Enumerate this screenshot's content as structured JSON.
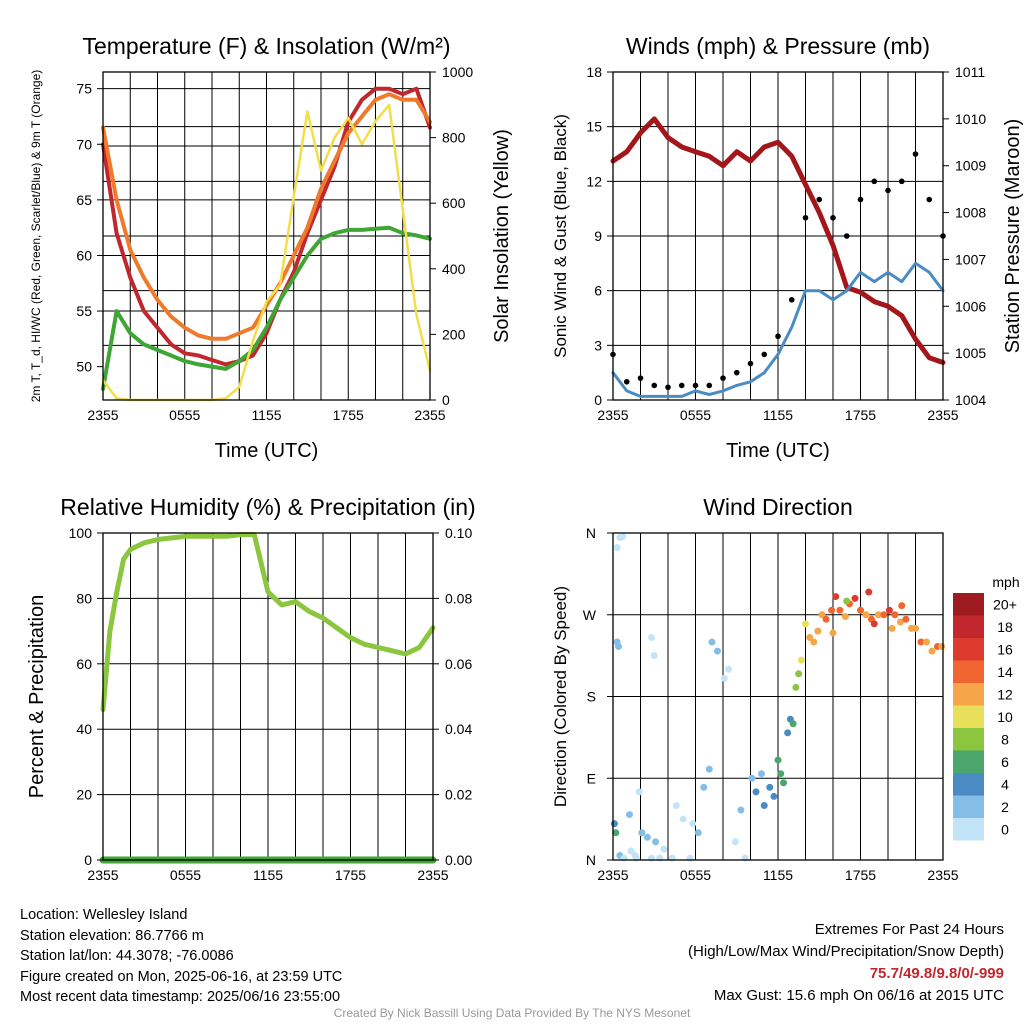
{
  "chart_data": [
    {
      "type": "line",
      "title": "Temperature (F) & Insolation (W/m²)",
      "xlabel": "Time (UTC)",
      "ylabel": "2m T, T_d, HI/WC (Red, Green, Scarlet/Blue) & 9m T (Orange)",
      "y2label": "Solar Insolation (Yellow)",
      "x_ticks": [
        "2355",
        "0555",
        "1155",
        "1755",
        "2355"
      ],
      "ylim": [
        47,
        76.5
      ],
      "y_ticks": [
        50,
        55,
        60,
        65,
        70,
        75
      ],
      "y2lim": [
        0,
        1000
      ],
      "y2_ticks": [
        0,
        200,
        400,
        600,
        800,
        1000
      ],
      "x_hours": [
        0,
        1,
        2,
        3,
        4,
        5,
        6,
        7,
        8,
        9,
        10,
        11,
        12,
        13,
        14,
        15,
        16,
        17,
        18,
        19,
        20,
        21,
        22,
        23,
        24
      ],
      "series": [
        {
          "key": "temp_2m",
          "color": "#c1272d",
          "axis": "left",
          "values": [
            70,
            62,
            58,
            55,
            53.5,
            52,
            51.2,
            51,
            50.6,
            50.2,
            50.5,
            51,
            53,
            56,
            58.5,
            62,
            65,
            68,
            72,
            74,
            75,
            75,
            74.5,
            75,
            71.5
          ]
        },
        {
          "key": "temp_9m",
          "color": "#f07a2c",
          "axis": "left",
          "values": [
            71.5,
            65,
            60.5,
            58,
            56,
            54.5,
            53.5,
            52.8,
            52.5,
            52.5,
            53,
            53.5,
            55.5,
            57.5,
            60,
            62.5,
            66,
            68.5,
            71,
            72.5,
            74,
            74.5,
            74,
            74,
            72
          ]
        },
        {
          "key": "dewpoint",
          "color": "#3fa535",
          "axis": "left",
          "values": [
            48,
            55,
            53,
            52,
            51.5,
            51,
            50.5,
            50.2,
            50,
            49.8,
            50.5,
            51.5,
            53.5,
            56,
            58,
            60,
            61.5,
            62,
            62.3,
            62.3,
            62.4,
            62.5,
            62,
            61.8,
            61.5
          ]
        },
        {
          "key": "insolation",
          "color": "#f2de4a",
          "axis": "right",
          "values": [
            60,
            5,
            0,
            0,
            0,
            0,
            0,
            0,
            0,
            5,
            40,
            180,
            300,
            350,
            620,
            880,
            700,
            800,
            860,
            780,
            850,
            900,
            580,
            260,
            90
          ]
        }
      ]
    },
    {
      "type": "line",
      "title": "Winds (mph) & Pressure (mb)",
      "xlabel": "Time (UTC)",
      "ylabel": "Sonic Wind & Gust (Blue, Black)",
      "y2label": "Station Pressure (Maroon)",
      "x_ticks": [
        "2355",
        "0555",
        "1155",
        "1755",
        "2355"
      ],
      "ylim": [
        0,
        18
      ],
      "y_ticks": [
        0,
        3,
        6,
        9,
        12,
        15,
        18
      ],
      "y2lim": [
        1004,
        1011
      ],
      "y2_ticks": [
        1004,
        1005,
        1006,
        1007,
        1008,
        1009,
        1010,
        1011
      ],
      "x_hours": [
        0,
        1,
        2,
        3,
        4,
        5,
        6,
        7,
        8,
        9,
        10,
        11,
        12,
        13,
        14,
        15,
        16,
        17,
        18,
        19,
        20,
        21,
        22,
        23,
        24
      ],
      "wind": [
        1.5,
        0.5,
        0.2,
        0.2,
        0.2,
        0.2,
        0.5,
        0.3,
        0.5,
        0.8,
        1.0,
        1.5,
        2.5,
        4,
        6,
        6,
        5.5,
        6,
        7,
        6.5,
        7,
        6.5,
        7.5,
        7,
        6
      ],
      "gust": [
        2.5,
        1.0,
        1.2,
        0.8,
        0.7,
        0.8,
        0.8,
        0.8,
        1.2,
        1.5,
        2,
        2.5,
        3.5,
        5.5,
        10,
        11,
        10,
        9,
        11,
        12,
        11.5,
        12,
        13.5,
        11,
        9
      ],
      "pressure": [
        1009.1,
        1009.3,
        1009.7,
        1010.0,
        1009.6,
        1009.4,
        1009.3,
        1009.2,
        1009.0,
        1009.3,
        1009.1,
        1009.4,
        1009.5,
        1009.2,
        1008.6,
        1008.0,
        1007.3,
        1006.4,
        1006.3,
        1006.1,
        1006.0,
        1005.8,
        1005.3,
        1004.9,
        1004.8
      ]
    },
    {
      "type": "line",
      "title": "Relative Humidity (%) & Precipitation (in)",
      "ylabel": "Percent & Precipitation",
      "x_ticks": [
        "2355",
        "0555",
        "1155",
        "1755",
        "2355"
      ],
      "ylim": [
        0,
        100
      ],
      "y_ticks": [
        0,
        20,
        40,
        60,
        80,
        100
      ],
      "y2lim": [
        0,
        0.1
      ],
      "y2_ticks": [
        "0.00",
        "0.02",
        "0.04",
        "0.06",
        "0.08",
        "0.10"
      ],
      "x_hours": [
        0,
        0.5,
        1,
        1.5,
        2,
        3,
        4,
        5,
        6,
        7,
        8,
        9,
        10,
        11,
        12,
        13,
        14,
        15,
        16,
        17,
        18,
        19,
        20,
        21,
        22,
        23,
        24
      ],
      "series": [
        {
          "key": "rh",
          "color": "#8cc63f",
          "values": [
            46,
            70,
            82,
            92,
            95,
            97,
            98,
            98.5,
            99,
            99,
            99,
            99,
            99.5,
            99.5,
            82,
            78,
            79,
            76,
            74,
            71,
            68,
            66,
            65,
            64,
            63,
            65,
            71
          ]
        },
        {
          "key": "precip",
          "color": "#3fa535",
          "values": [
            0,
            0,
            0,
            0,
            0,
            0,
            0,
            0,
            0,
            0,
            0,
            0,
            0,
            0,
            0,
            0,
            0,
            0,
            0,
            0,
            0,
            0,
            0,
            0,
            0,
            0,
            0
          ]
        }
      ]
    },
    {
      "type": "scatter",
      "title": "Wind Direction",
      "ylabel": "Direction (Colored By Speed)",
      "x_ticks": [
        "2355",
        "0555",
        "1155",
        "1755",
        "2355"
      ],
      "y_ticks": [
        "N",
        "E",
        "S",
        "W",
        "N"
      ],
      "ylim": [
        0,
        360
      ],
      "legend_title": "mph",
      "legend_labels": [
        "20+",
        "18",
        "16",
        "14",
        "12",
        "10",
        "8",
        "6",
        "4",
        "2",
        "0"
      ],
      "legend_colors": [
        "#9e1b1f",
        "#c1272d",
        "#dc3a2c",
        "#f06530",
        "#f6a548",
        "#e8e05a",
        "#8cc63f",
        "#4aa66a",
        "#4a8bc4",
        "#84bde6",
        "#c3e4f7"
      ],
      "points": [
        [
          0.3,
          344
        ],
        [
          0.5,
          355
        ],
        [
          0.7,
          356
        ],
        [
          0.3,
          240
        ],
        [
          0.4,
          235
        ],
        [
          0.1,
          40
        ],
        [
          0.2,
          30
        ],
        [
          0.5,
          5
        ],
        [
          0.8,
          2
        ],
        [
          1.2,
          50
        ],
        [
          1.6,
          5
        ],
        [
          1.7,
          2
        ],
        [
          1.3,
          10
        ],
        [
          1.9,
          75
        ],
        [
          2.1,
          30
        ],
        [
          2.5,
          25
        ],
        [
          2.8,
          2
        ],
        [
          3.1,
          20
        ],
        [
          3.4,
          2
        ],
        [
          2.8,
          245
        ],
        [
          3.0,
          225
        ],
        [
          3.7,
          12
        ],
        [
          4.3,
          2
        ],
        [
          4.6,
          60
        ],
        [
          5.1,
          45
        ],
        [
          5.6,
          2
        ],
        [
          5.8,
          40
        ],
        [
          6.2,
          30
        ],
        [
          6.6,
          80
        ],
        [
          7.0,
          100
        ],
        [
          7.2,
          240
        ],
        [
          7.6,
          230
        ],
        [
          8.1,
          200
        ],
        [
          8.4,
          210
        ],
        [
          8.9,
          20
        ],
        [
          9.3,
          55
        ],
        [
          9.6,
          2
        ],
        [
          10.1,
          90
        ],
        [
          10.4,
          75
        ],
        [
          10.8,
          95
        ],
        [
          11.0,
          60
        ],
        [
          11.4,
          80
        ],
        [
          11.7,
          70
        ],
        [
          12.0,
          110
        ],
        [
          12.2,
          95
        ],
        [
          12.4,
          85
        ],
        [
          12.7,
          140
        ],
        [
          12.9,
          155
        ],
        [
          13.1,
          150
        ],
        [
          13.3,
          190
        ],
        [
          13.5,
          205
        ],
        [
          13.7,
          220
        ],
        [
          14.0,
          260
        ],
        [
          14.3,
          245
        ],
        [
          14.6,
          240
        ],
        [
          14.9,
          252
        ],
        [
          15.2,
          270
        ],
        [
          15.5,
          265
        ],
        [
          15.9,
          275
        ],
        [
          16.2,
          290
        ],
        [
          16.5,
          275
        ],
        [
          16.9,
          268
        ],
        [
          17.2,
          282
        ],
        [
          17.6,
          288
        ],
        [
          18.0,
          275
        ],
        [
          18.4,
          270
        ],
        [
          18.8,
          265
        ],
        [
          19.3,
          270
        ],
        [
          19.7,
          270
        ],
        [
          20.1,
          275
        ],
        [
          20.5,
          270
        ],
        [
          20.9,
          262
        ],
        [
          21.3,
          265
        ],
        [
          21.7,
          255
        ],
        [
          22.0,
          255
        ],
        [
          22.4,
          240
        ],
        [
          22.8,
          240
        ],
        [
          23.2,
          230
        ],
        [
          23.6,
          235
        ],
        [
          23.9,
          235
        ],
        [
          16.0,
          250
        ],
        [
          17.0,
          285
        ],
        [
          18.6,
          295
        ],
        [
          19.0,
          260
        ],
        [
          20.3,
          255
        ],
        [
          21.0,
          280
        ]
      ],
      "speeds": [
        0,
        0,
        0,
        1,
        1,
        2,
        3,
        1,
        0,
        1,
        0,
        0,
        0,
        0,
        1,
        1,
        0,
        1,
        0,
        0,
        0,
        0,
        0,
        0,
        0,
        0,
        0,
        1,
        1,
        1,
        1,
        1,
        0,
        0,
        0,
        1,
        0,
        1,
        2,
        1,
        2,
        2,
        2,
        3,
        3,
        3,
        2,
        2,
        3,
        4,
        4,
        5,
        5,
        6,
        6,
        6,
        6,
        7,
        7,
        8,
        7,
        6,
        7,
        8,
        7,
        6,
        7,
        6,
        7,
        8,
        7,
        6,
        7,
        6,
        6,
        7,
        6,
        6,
        7,
        6,
        6,
        4,
        8,
        8,
        6,
        7
      ]
    }
  ],
  "info": {
    "location": "Location: Wellesley Island",
    "elevation": "Station elevation: 86.7766 m",
    "latlon": "Station lat/lon: 44.3078; -76.0086",
    "created": "Figure created on Mon, 2025-06-16, at 23:59 UTC",
    "recent": "Most recent data timestamp: 2025/06/16 23:55:00"
  },
  "extremes": {
    "title": "Extremes For Past 24 Hours",
    "subtitle": "(High/Low/Max Wind/Precipitation/Snow Depth)",
    "values": "75.7/49.8/9.8/0/-999",
    "gust": "Max Gust: 15.6 mph On 06/16 at 2015 UTC"
  },
  "credit": "Created By Nick Bassill Using Data Provided By The NYS Mesonet"
}
